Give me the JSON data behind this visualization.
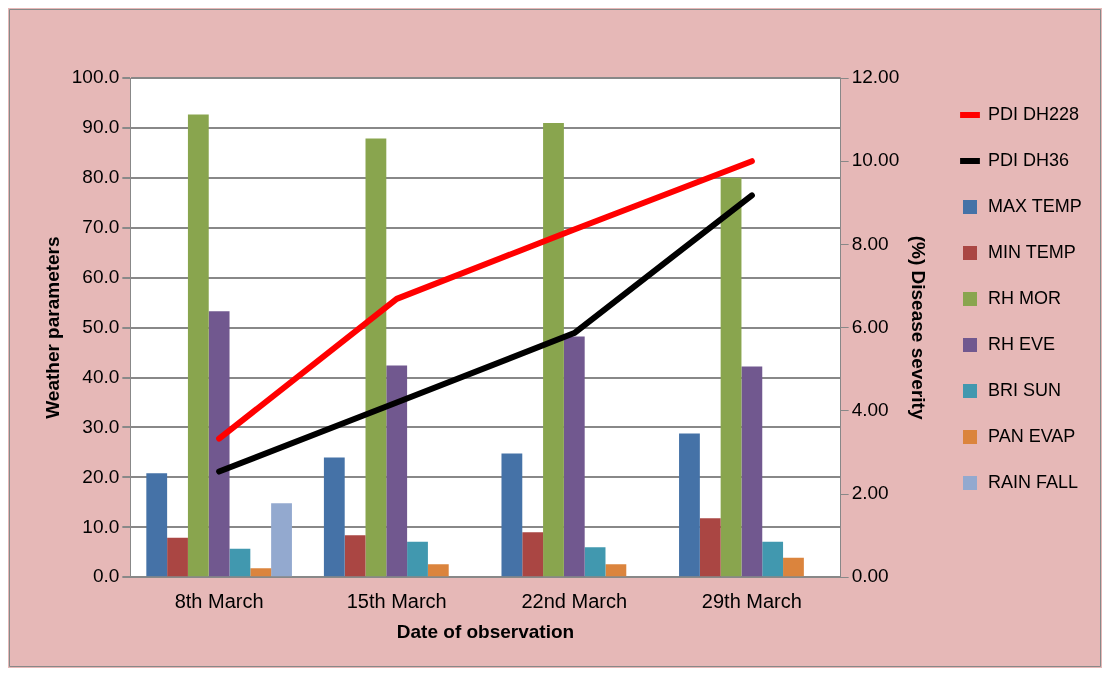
{
  "chart_data": {
    "type": "bar",
    "xlabel": "Date of observation",
    "ylabel": "Weather parameters",
    "y2label": "(%) Disease severity",
    "categories": [
      "8th March",
      "15th March",
      "22nd March",
      "29th March"
    ],
    "series": [
      {
        "name": "MAX TEMP",
        "color": "#4572a7",
        "values": [
          20.8,
          24.0,
          24.8,
          28.8
        ]
      },
      {
        "name": "MIN TEMP",
        "color": "#aa4643",
        "values": [
          7.9,
          8.4,
          9.0,
          11.8
        ]
      },
      {
        "name": "RH MOR",
        "color": "#89a54e",
        "values": [
          92.7,
          87.9,
          91.0,
          80.0
        ]
      },
      {
        "name": "RH EVE",
        "color": "#71588f",
        "values": [
          53.3,
          42.4,
          48.2,
          42.2
        ]
      },
      {
        "name": "BRI SUN",
        "color": "#4198af",
        "values": [
          5.7,
          7.1,
          6.0,
          7.1
        ]
      },
      {
        "name": "PAN EVAP",
        "color": "#db843d",
        "values": [
          1.8,
          2.6,
          2.6,
          3.9
        ]
      },
      {
        "name": "RAIN FALL",
        "color": "#93a9cf",
        "values": [
          14.8,
          0,
          0,
          0
        ]
      },
      {
        "name": "PDI DH228",
        "color": "#ff0000",
        "type": "line",
        "axis": "y2",
        "values": [
          3.33,
          6.69,
          8.36,
          10.0
        ]
      },
      {
        "name": "PDI DH36",
        "color": "#000000",
        "type": "line",
        "axis": "y2",
        "values": [
          2.54,
          4.2,
          5.87,
          9.18
        ]
      }
    ],
    "ylim": [
      0,
      100
    ],
    "yticks": [
      {
        "value": 0,
        "label": "0.0"
      },
      {
        "value": 10,
        "label": "10.0"
      },
      {
        "value": 20,
        "label": "20.0"
      },
      {
        "value": 30,
        "label": "30.0"
      },
      {
        "value": 40,
        "label": "40.0"
      },
      {
        "value": 50,
        "label": "50.0"
      },
      {
        "value": 60,
        "label": "60.0"
      },
      {
        "value": 70,
        "label": "70.0"
      },
      {
        "value": 80,
        "label": "80.0"
      },
      {
        "value": 90,
        "label": "90.0"
      },
      {
        "value": 100,
        "label": "100.0"
      }
    ],
    "y2lim": [
      0,
      12
    ],
    "y2ticks": [
      {
        "value": 0,
        "label": "0.00"
      },
      {
        "value": 2,
        "label": "2.00"
      },
      {
        "value": 4,
        "label": "4.00"
      },
      {
        "value": 6,
        "label": "6.00"
      },
      {
        "value": 8,
        "label": "8.00"
      },
      {
        "value": 10,
        "label": "10.00"
      },
      {
        "value": 12,
        "label": "12.00"
      }
    ],
    "grid": "y",
    "legend": "right",
    "marker": "none"
  }
}
